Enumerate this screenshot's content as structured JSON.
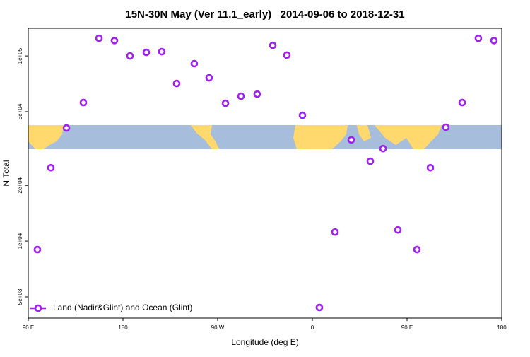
{
  "chart_data": {
    "type": "scatter",
    "title": "15N-30N May (Ver 11.1_early)   2014-09-06 to 2018-12-31",
    "x_label": "Longitude (deg E)",
    "y_label": "N Total",
    "log_y": true,
    "legend": "bottom-left",
    "xlim": [
      90,
      540
    ],
    "xticks": [
      {
        "value": 90,
        "label": "90 E"
      },
      {
        "value": 180,
        "label": "180"
      },
      {
        "value": 270,
        "label": "90 W"
      },
      {
        "value": 360,
        "label": "0"
      },
      {
        "value": 450,
        "label": "90 E"
      },
      {
        "value": 540,
        "label": "180"
      }
    ],
    "ylim": [
      3840,
      141000
    ],
    "yticks": [
      {
        "value": 5000,
        "label": "5e+03"
      },
      {
        "value": 10000,
        "label": "1e+04"
      },
      {
        "value": 20000,
        "label": "2e+04"
      },
      {
        "value": 50000,
        "label": "5e+04"
      },
      {
        "value": 100000,
        "label": "1e+05"
      }
    ],
    "series": [
      {
        "name": "Land (Nadir&Glint) and Ocean (Glint)",
        "color": "#a020f0",
        "x": [
          98.7,
          111.5,
          126.3,
          142.4,
          157.2,
          171.9,
          186.7,
          202.2,
          216.9,
          231.0,
          247.8,
          261.9,
          277.4,
          292.2,
          307.6,
          322.4,
          335.8,
          350.6,
          366.7,
          381.5,
          397.0,
          415.1,
          427.2,
          441.3,
          459.4,
          472.2,
          486.9,
          502.4,
          517.8,
          532.6
        ],
        "values": [
          9000,
          24900,
          40800,
          56000,
          124500,
          121000,
          100000,
          104500,
          105400,
          71000,
          90800,
          76200,
          55500,
          60600,
          62200,
          114000,
          101000,
          47800,
          4380,
          11200,
          35200,
          27000,
          31600,
          11500,
          9000,
          24900,
          41200,
          56000,
          124500,
          121000
        ]
      }
    ]
  }
}
